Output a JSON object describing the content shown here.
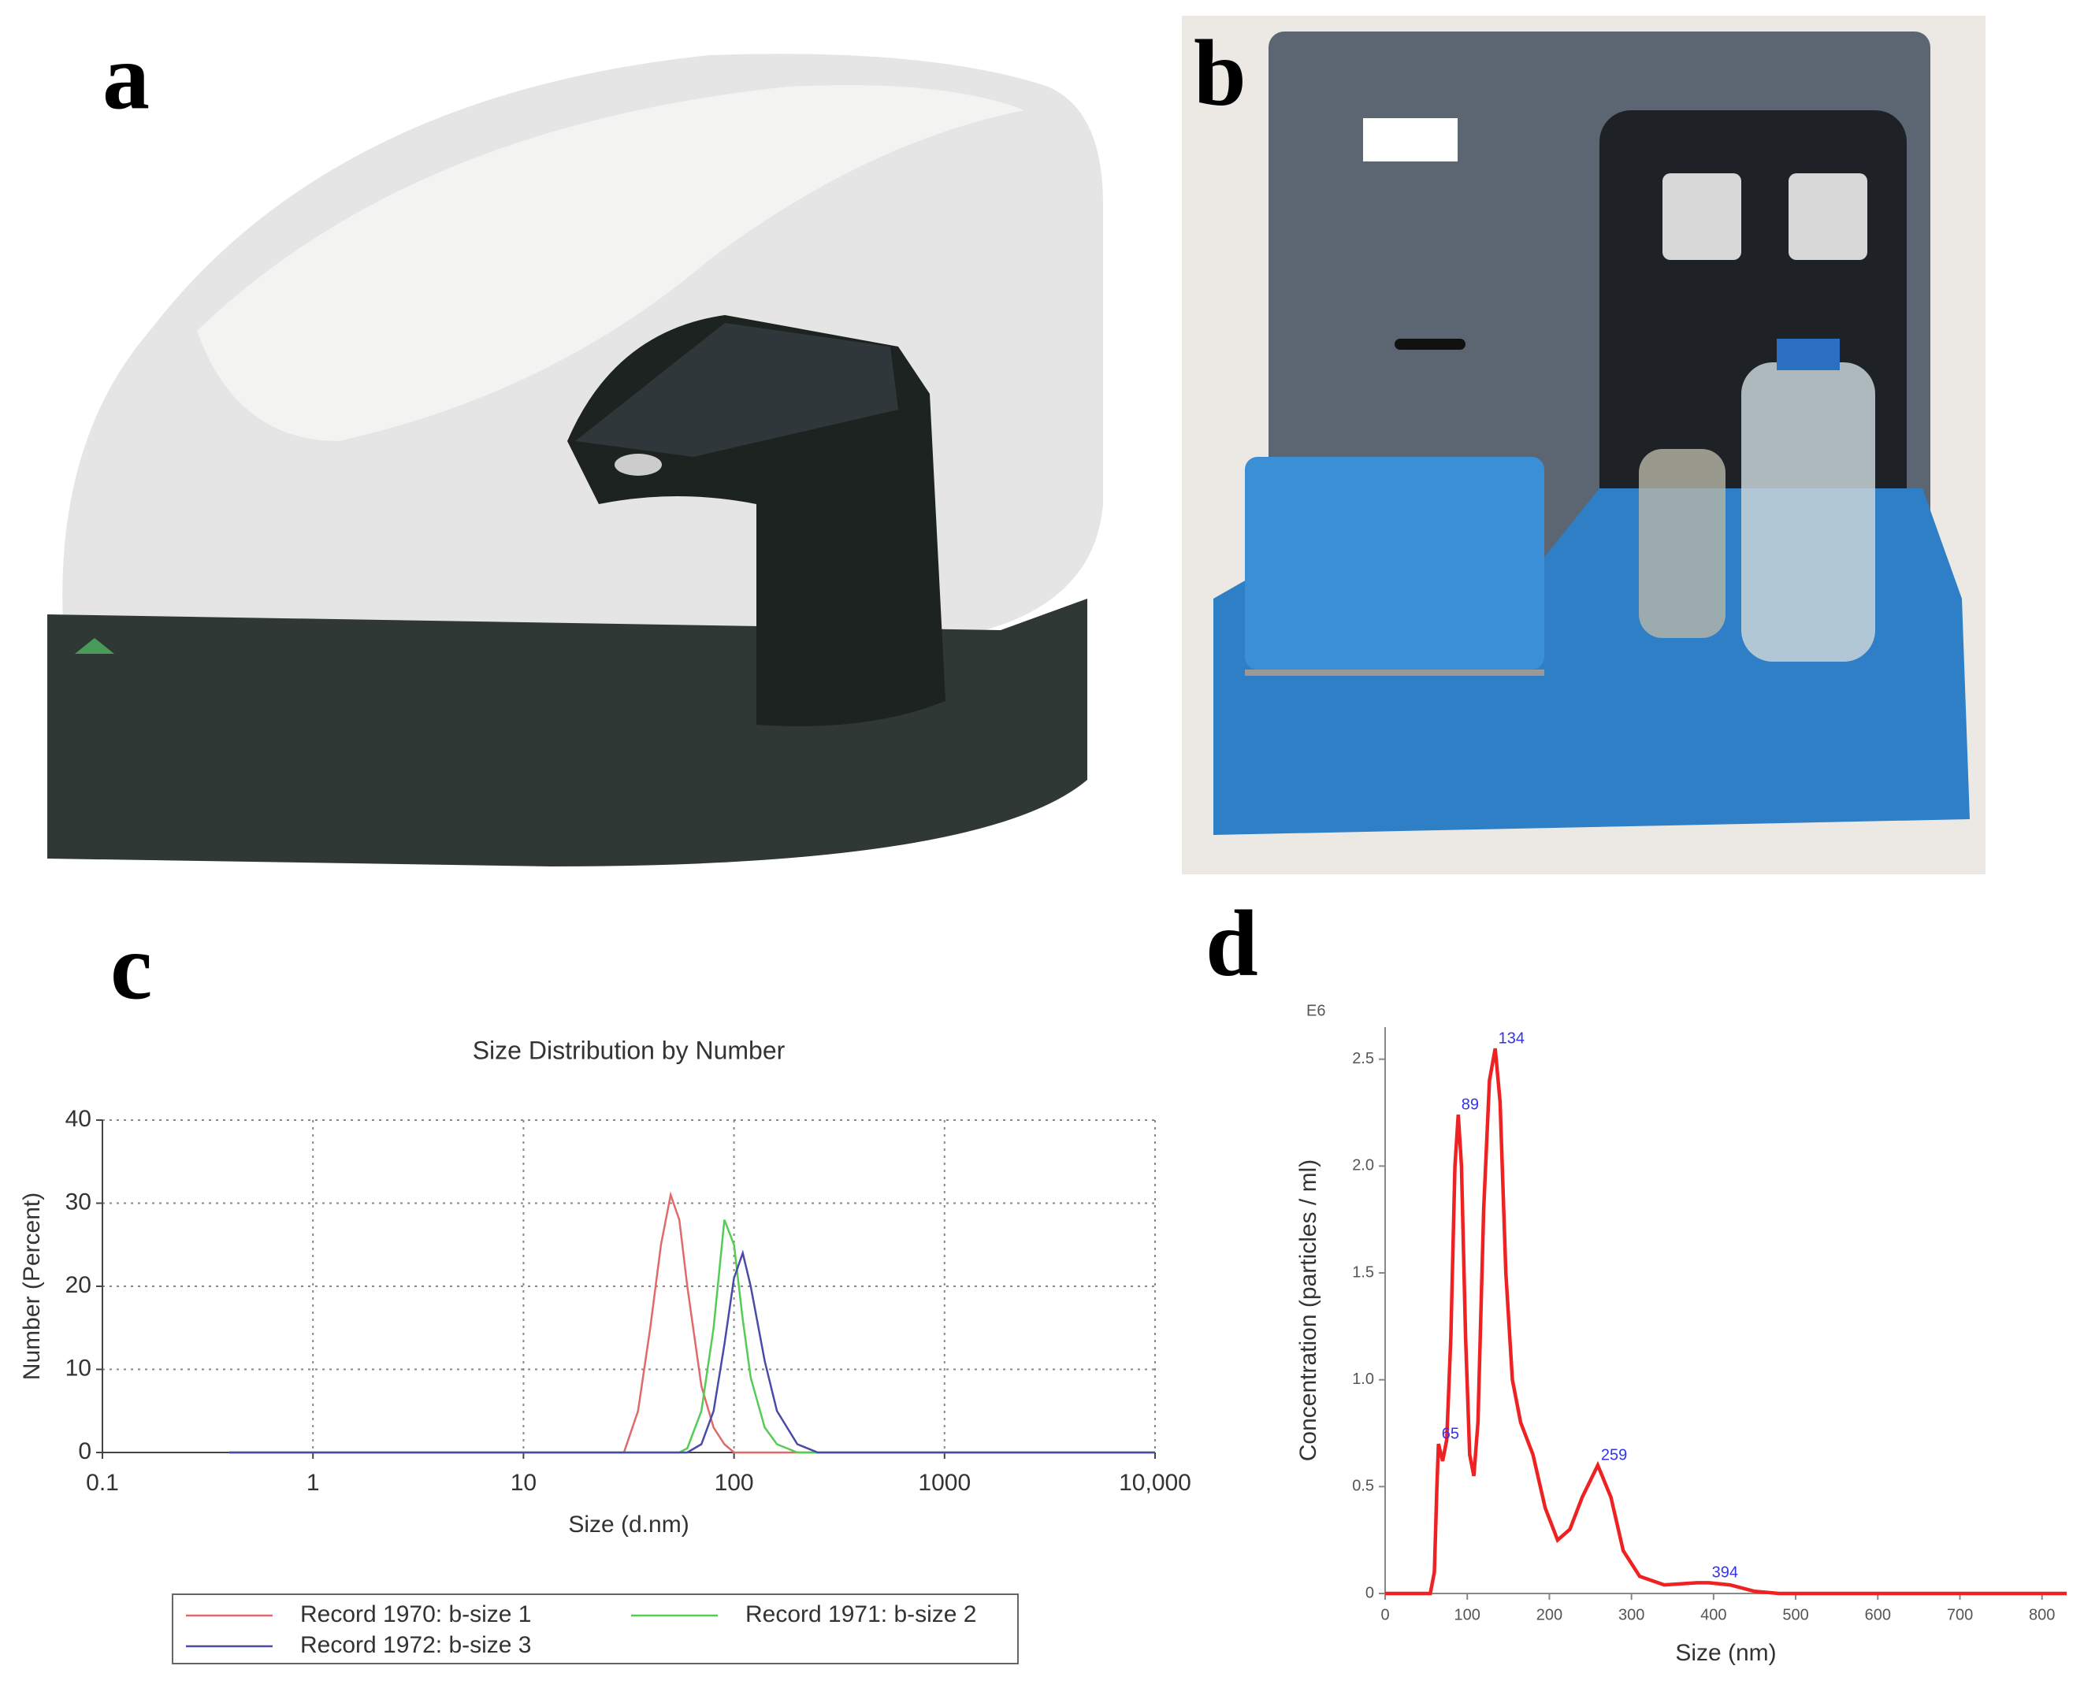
{
  "panels": [
    "a",
    "b",
    "c",
    "d"
  ],
  "chart_data": [
    {
      "type": "line",
      "title": "Size Distribution by Number",
      "x_label": "Size (d.nm)",
      "y_label": "Number (Percent)",
      "xscale": "log",
      "grid": true,
      "legend": "bottom",
      "xlim": [
        0.1,
        10000
      ],
      "xticks": [
        0.1,
        1,
        10,
        100,
        1000,
        {
          "value": 10000,
          "label": "10,000"
        }
      ],
      "ylim": [
        0,
        40
      ],
      "yticks": [
        0,
        10,
        20,
        30,
        40
      ],
      "x": [
        0.4,
        30,
        35,
        40,
        45,
        50,
        55,
        60,
        70,
        80,
        90,
        100,
        110,
        120,
        140,
        160,
        200,
        250,
        300,
        10000
      ],
      "series": [
        {
          "name": "Record 1970: b-size 1",
          "color": "#e06a6a",
          "values": [
            0,
            0,
            5,
            15,
            25,
            31,
            28,
            20,
            8,
            3,
            1,
            0,
            0,
            0,
            0,
            0,
            0,
            0,
            0,
            0
          ]
        },
        {
          "name": "Record 1971: b-size 2",
          "color": "#55cc55",
          "values": [
            0,
            0,
            0,
            0,
            0,
            0,
            0,
            0.5,
            5,
            15,
            28,
            25,
            16,
            9,
            3,
            1,
            0,
            0,
            0,
            0
          ]
        },
        {
          "name": "Record 1972: b-size 3",
          "color": "#4a4aa8",
          "values": [
            0,
            0,
            0,
            0,
            0,
            0,
            0,
            0,
            1,
            5,
            13,
            21,
            24,
            20,
            11,
            5,
            1,
            0,
            0,
            0
          ]
        }
      ]
    },
    {
      "type": "line",
      "x_label": "Size (nm)",
      "y_label": "Concentration (particles / ml)",
      "y_unit": "E6",
      "grid": false,
      "xlim": [
        0,
        830
      ],
      "xticks": [
        0,
        100,
        200,
        300,
        400,
        500,
        600,
        700,
        800
      ],
      "ylim": [
        0,
        2.65
      ],
      "yticks": [
        0,
        0.5,
        {
          "value": 1,
          "label": "1.0"
        },
        1.5,
        {
          "value": 2,
          "label": "2.0"
        },
        2.5
      ],
      "x": [
        0,
        55,
        60,
        63,
        65,
        70,
        75,
        80,
        85,
        89,
        93,
        98,
        103,
        108,
        113,
        120,
        127,
        134,
        140,
        147,
        155,
        165,
        180,
        195,
        210,
        225,
        240,
        259,
        275,
        290,
        310,
        340,
        380,
        394,
        420,
        450,
        480,
        830
      ],
      "series": [
        {
          "color": "#ee2222",
          "values": [
            0,
            0,
            0.1,
            0.5,
            0.7,
            0.62,
            0.72,
            1.2,
            2.0,
            2.24,
            2.0,
            1.2,
            0.65,
            0.55,
            0.8,
            1.8,
            2.4,
            2.55,
            2.3,
            1.5,
            1.0,
            0.8,
            0.65,
            0.4,
            0.25,
            0.3,
            0.45,
            0.6,
            0.45,
            0.2,
            0.08,
            0.04,
            0.05,
            0.05,
            0.04,
            0.01,
            0,
            0
          ]
        }
      ],
      "peak_color": "#3333ee",
      "peaks": [
        {
          "x": 65,
          "y": 0.7
        },
        {
          "x": 89,
          "y": 2.24
        },
        {
          "x": 134,
          "y": 2.55
        },
        {
          "x": 259,
          "y": 0.6
        },
        {
          "x": 394,
          "y": 0.05
        }
      ]
    }
  ]
}
